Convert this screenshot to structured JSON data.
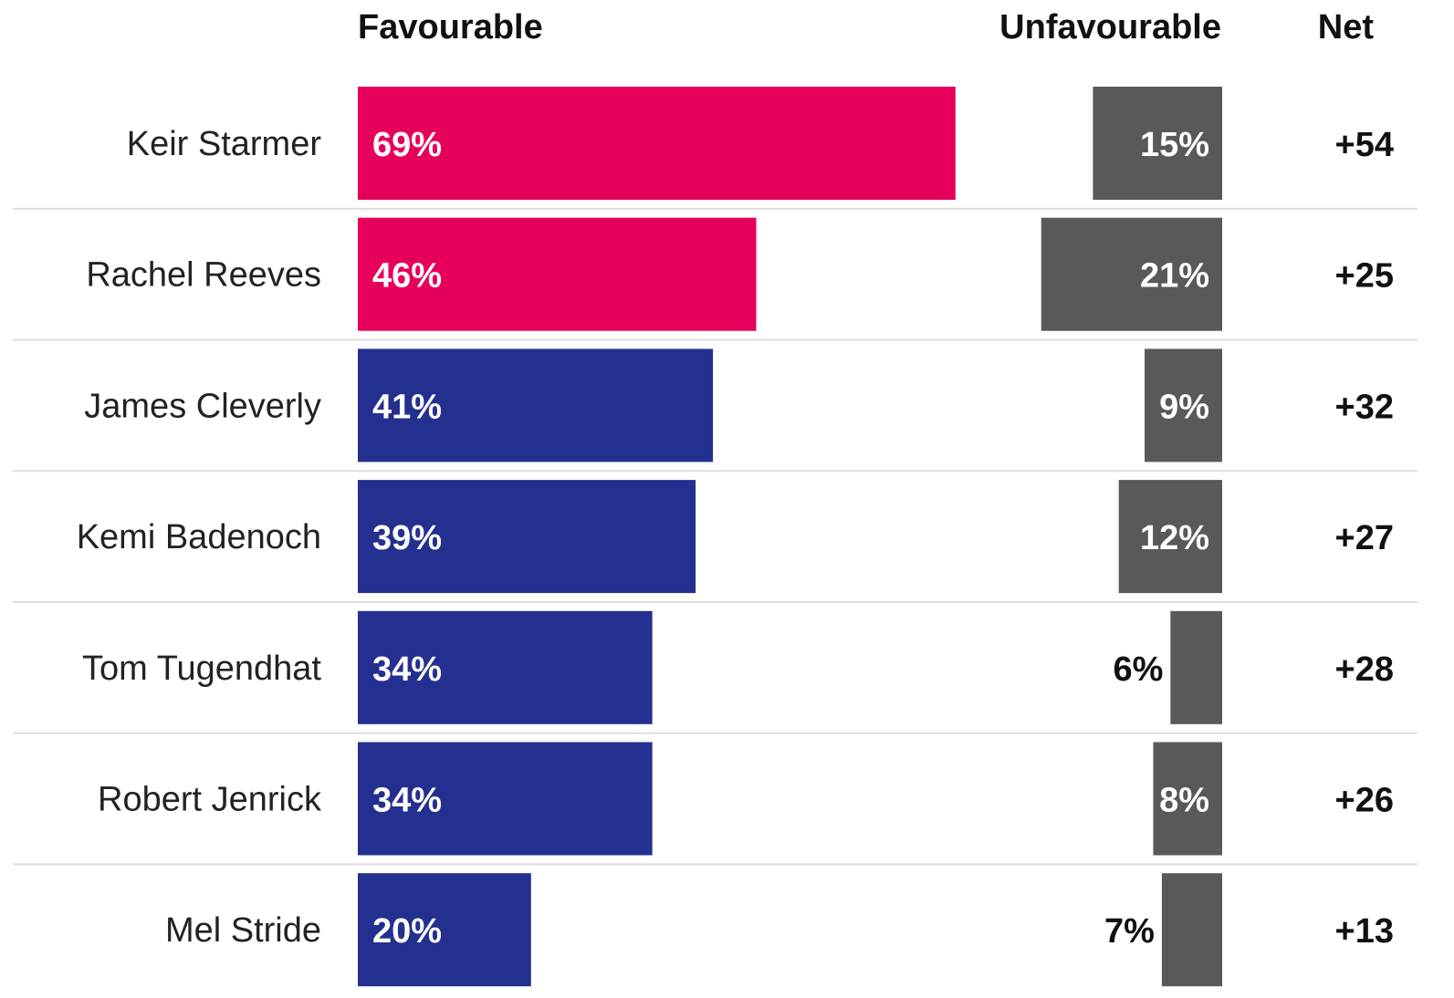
{
  "chart_data": {
    "type": "bar",
    "headers": {
      "favourable": "Favourable",
      "unfavourable": "Unfavourable",
      "net": "Net"
    },
    "categories": [
      "Keir Starmer",
      "Rachel Reeves",
      "James Cleverly",
      "Kemi Badenoch",
      "Tom Tugendhat",
      "Robert Jenrick",
      "Mel Stride"
    ],
    "series": [
      {
        "key": "favourable",
        "values": [
          69,
          46,
          41,
          39,
          34,
          34,
          20
        ],
        "labels": [
          "69%",
          "46%",
          "41%",
          "39%",
          "34%",
          "34%",
          "20%"
        ]
      },
      {
        "key": "unfavourable",
        "values": [
          15,
          21,
          9,
          12,
          6,
          8,
          7
        ],
        "labels": [
          "15%",
          "21%",
          "9%",
          "12%",
          "6%",
          "8%",
          "7%"
        ]
      }
    ],
    "net": [
      "+54",
      "+25",
      "+32",
      "+27",
      "+28",
      "+26",
      "+13"
    ],
    "bar_colors": [
      "#e6005c",
      "#e6005c",
      "#243090",
      "#243090",
      "#243090",
      "#243090",
      "#243090"
    ],
    "unfavourable_color": "#595959",
    "grid": false
  }
}
